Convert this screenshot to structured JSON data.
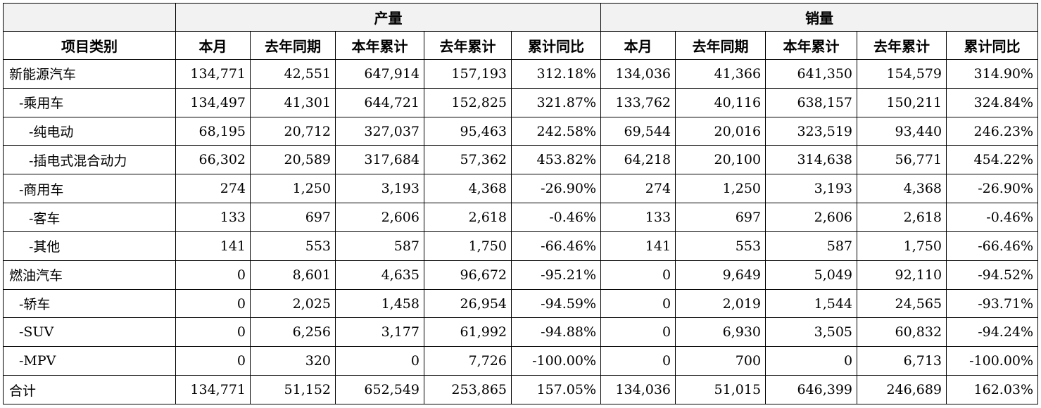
{
  "groups": {
    "production": "产量",
    "sales": "销量"
  },
  "columns": {
    "category": "项目类别",
    "sub": [
      "本月",
      "去年同期",
      "本年累计",
      "去年累计",
      "累计同比"
    ]
  },
  "rows": [
    {
      "label": "新能源汽车",
      "values": [
        "134,771",
        "42,551",
        "647,914",
        "157,193",
        "312.18%",
        "134,036",
        "41,366",
        "641,350",
        "154,579",
        "314.90%"
      ]
    },
    {
      "label": "-乘用车",
      "values": [
        "134,497",
        "41,301",
        "644,721",
        "152,825",
        "321.87%",
        "133,762",
        "40,116",
        "638,157",
        "150,211",
        "324.84%"
      ]
    },
    {
      "label": "-纯电动",
      "values": [
        "68,195",
        "20,712",
        "327,037",
        "95,463",
        "242.58%",
        "69,544",
        "20,016",
        "323,519",
        "93,440",
        "246.23%"
      ]
    },
    {
      "label": "-插电式混合动力",
      "values": [
        "66,302",
        "20,589",
        "317,684",
        "57,362",
        "453.82%",
        "64,218",
        "20,100",
        "314,638",
        "56,771",
        "454.22%"
      ]
    },
    {
      "label": "-商用车",
      "values": [
        "274",
        "1,250",
        "3,193",
        "4,368",
        "-26.90%",
        "274",
        "1,250",
        "3,193",
        "4,368",
        "-26.90%"
      ]
    },
    {
      "label": "-客车",
      "values": [
        "133",
        "697",
        "2,606",
        "2,618",
        "-0.46%",
        "133",
        "697",
        "2,606",
        "2,618",
        "-0.46%"
      ]
    },
    {
      "label": "-其他",
      "values": [
        "141",
        "553",
        "587",
        "1,750",
        "-66.46%",
        "141",
        "553",
        "587",
        "1,750",
        "-66.46%"
      ]
    },
    {
      "label": "燃油汽车",
      "values": [
        "0",
        "8,601",
        "4,635",
        "96,672",
        "-95.21%",
        "0",
        "9,649",
        "5,049",
        "92,110",
        "-94.52%"
      ]
    },
    {
      "label": "-轿车",
      "values": [
        "0",
        "2,025",
        "1,458",
        "26,954",
        "-94.59%",
        "0",
        "2,019",
        "1,544",
        "24,565",
        "-93.71%"
      ]
    },
    {
      "label": "-SUV",
      "values": [
        "0",
        "6,256",
        "3,177",
        "61,992",
        "-94.88%",
        "0",
        "6,930",
        "3,505",
        "60,832",
        "-94.24%"
      ]
    },
    {
      "label": "-MPV",
      "values": [
        "0",
        "320",
        "0",
        "7,726",
        "-100.00%",
        "0",
        "700",
        "0",
        "6,713",
        "-100.00%"
      ]
    },
    {
      "label": "合计",
      "values": [
        "134,771",
        "51,152",
        "652,549",
        "253,865",
        "157.05%",
        "134,036",
        "51,015",
        "646,399",
        "246,689",
        "162.03%"
      ]
    }
  ],
  "indents": [
    0,
    1,
    2,
    2,
    1,
    2,
    2,
    0,
    1,
    1,
    1,
    0
  ]
}
